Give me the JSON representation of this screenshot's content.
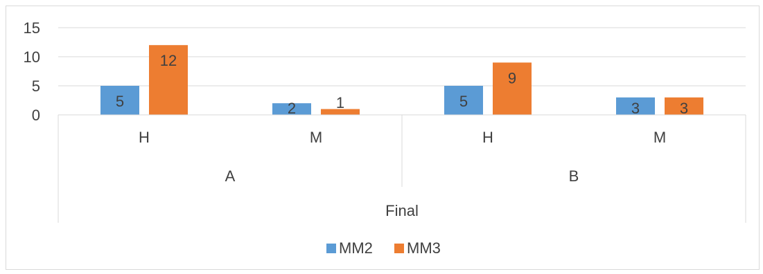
{
  "chart_data": {
    "type": "bar",
    "series": [
      {
        "name": "MM2",
        "color": "#5b9bd5",
        "values": [
          5,
          2,
          5,
          3
        ]
      },
      {
        "name": "MM3",
        "color": "#ed7d31",
        "values": [
          12,
          1,
          9,
          3
        ]
      }
    ],
    "categories": [
      "H",
      "M",
      "H",
      "M"
    ],
    "groups": [
      {
        "label": "A",
        "categories": [
          0,
          1
        ]
      },
      {
        "label": "B",
        "categories": [
          2,
          3
        ]
      }
    ],
    "outer_group": "Final",
    "ylim": [
      0,
      15
    ],
    "yticks": [
      0,
      5,
      10,
      15
    ],
    "grid": true,
    "legend": "bottom-center"
  }
}
